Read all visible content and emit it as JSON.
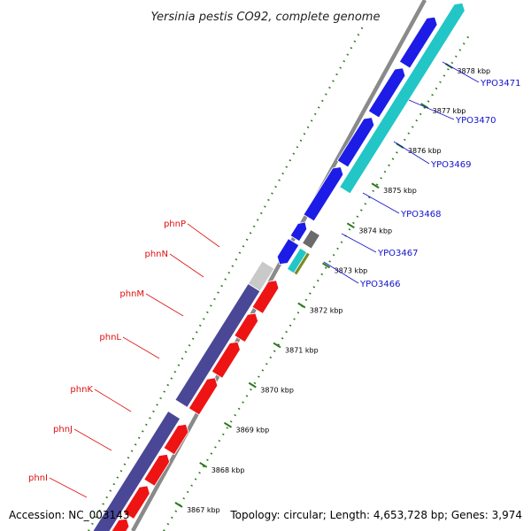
{
  "title": "Yersinia pestis CO92, complete genome",
  "footer": {
    "accession": "Accession: NC_003143",
    "summary": "Topology: circular; Length: 4,653,728 bp; Genes: 3,974"
  },
  "colors": {
    "forward_gene": "#1c1ce6",
    "cyan_gene": "#22c6c6",
    "gray_gene": "#6b6b6b",
    "olive_gene": "#7c8a22",
    "reverse_gene": "#ee1414",
    "phn_operon": "#4a4796",
    "light_gene": "#c9c9c9",
    "backbone": "#8a8a8a",
    "ticks": "#2a7a1c",
    "right_labels": "#1111cc",
    "left_labels": "#dd1111"
  },
  "axis_ticks": [
    {
      "label": "3867 kbp"
    },
    {
      "label": "3868 kbp"
    },
    {
      "label": "3869 kbp"
    },
    {
      "label": "3870 kbp"
    },
    {
      "label": "3871 kbp"
    },
    {
      "label": "3872 kbp"
    },
    {
      "label": "3873 kbp"
    },
    {
      "label": "3874 kbp"
    },
    {
      "label": "3875 kbp"
    },
    {
      "label": "3876 kbp"
    },
    {
      "label": "3877 kbp"
    },
    {
      "label": "3878 kbp"
    }
  ],
  "right_labels": [
    "YPO3466",
    "YPO3467",
    "YPO3468",
    "YPO3469",
    "YPO3470",
    "YPO3471"
  ],
  "left_labels": [
    "phnI",
    "phnJ",
    "phnK",
    "phnL",
    "phnM",
    "phnN",
    "phnP"
  ]
}
